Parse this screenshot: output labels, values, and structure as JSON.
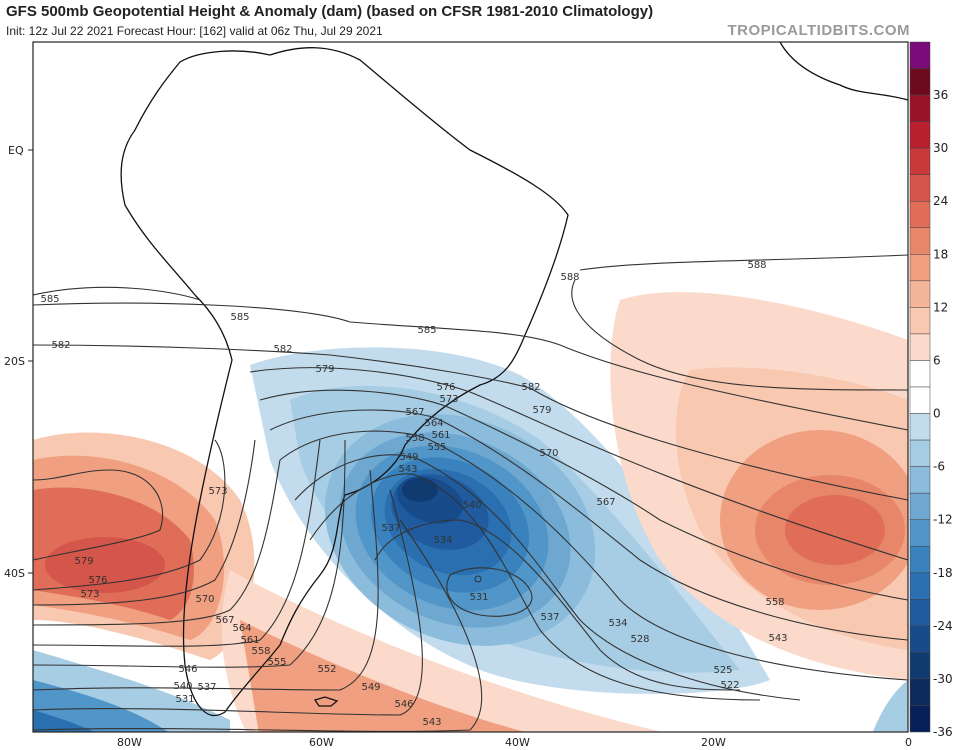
{
  "header": {
    "title": "GFS 500mb Geopotential Height & Anomaly (dam) (based on CFSR 1981-2010 Climatology)",
    "subtitle": "Init: 12z Jul 22 2021   Forecast Hour: [162]   valid at 06z Thu, Jul 29 2021",
    "brand": "TROPICALTIDBITS.COM"
  },
  "axes": {
    "lat_labels": [
      "EQ",
      "20S",
      "40S"
    ],
    "lon_labels": [
      "80W",
      "60W",
      "40W",
      "20W",
      "0"
    ]
  },
  "colorbar": {
    "labels": [
      "36",
      "30",
      "24",
      "18",
      "12",
      "6",
      "0",
      "-6",
      "-12",
      "-18",
      "-24",
      "-30",
      "-36"
    ],
    "colors": [
      "#7b0a7b",
      "#6e0a1e",
      "#9a1428",
      "#b8202e",
      "#c83a3a",
      "#d4554a",
      "#df6d58",
      "#e8866a",
      "#f0a080",
      "#f5b598",
      "#f8c8b0",
      "#fbdacb",
      "#ffffff",
      "#ffffff",
      "#c3dced",
      "#a6cde4",
      "#8cbcdb",
      "#6ea7d0",
      "#5196c8",
      "#3a82bd",
      "#2a6fb0",
      "#1f5b9e",
      "#174b8a",
      "#103b70",
      "#0b2c5c",
      "#08205a"
    ]
  },
  "contour_labels": [
    "588",
    "588",
    "585",
    "585",
    "585",
    "582",
    "582",
    "582",
    "579",
    "579",
    "576",
    "573",
    "570",
    "567",
    "567",
    "564",
    "561",
    "558",
    "555",
    "549",
    "543",
    "540",
    "537",
    "534",
    "531",
    "537",
    "534",
    "528",
    "525",
    "522",
    "558",
    "543",
    "579",
    "576",
    "573",
    "573",
    "570",
    "567",
    "564",
    "561",
    "558",
    "555",
    "552",
    "549",
    "546",
    "543",
    "546",
    "540",
    "537",
    "531"
  ]
}
